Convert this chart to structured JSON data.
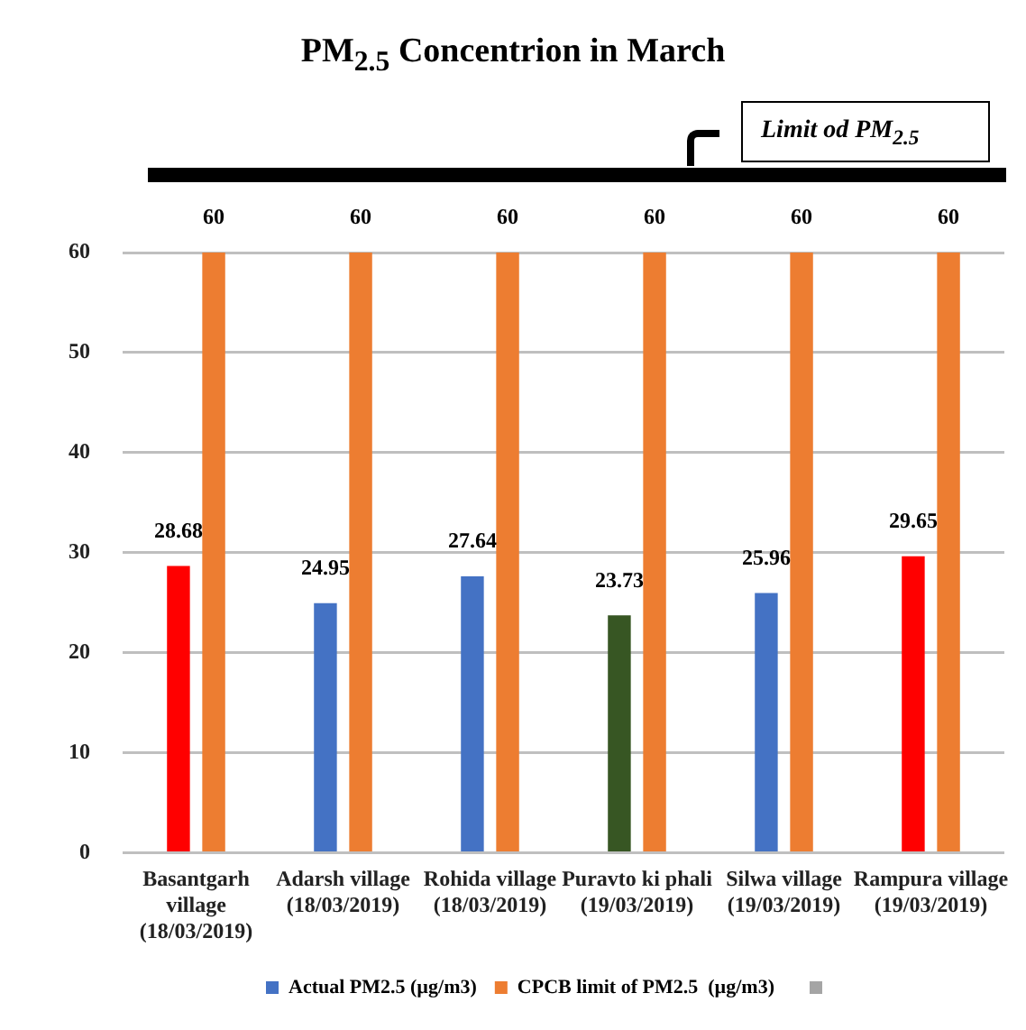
{
  "chart_data": {
    "type": "bar",
    "title": "PM$_{2.5}$ Concentrion in March",
    "annotations": [
      "Limit od PM$_{2.5}$"
    ],
    "categories": [
      "Basantgarh village (18/03/2019)",
      "Adarsh village (18/03/2019)",
      "Rohida village (18/03/2019)",
      "Puravto ki phali (19/03/2019)",
      "Silwa village (19/03/2019)",
      "Rampura village (19/03/2019)"
    ],
    "series": [
      {
        "name": "Actual PM2.5 (µg/m3)",
        "color": "#4472c4",
        "colors": [
          "#ff0000",
          "#4472c4",
          "#4472c4",
          "#375623",
          "#4472c4",
          "#ff0000"
        ],
        "values": [
          28.68,
          24.95,
          27.64,
          23.73,
          25.96,
          29.65
        ]
      },
      {
        "name": "CPCB limit of PM2.5  (µg/m3)",
        "color": "#ed7d31",
        "values": [
          60,
          60,
          60,
          60,
          60,
          60
        ]
      }
    ],
    "ylim": [
      0,
      60
    ],
    "yticks": [
      0,
      10,
      20,
      30,
      40,
      50,
      60
    ],
    "grid": "y",
    "legend": "bottom",
    "data_labels": true
  }
}
